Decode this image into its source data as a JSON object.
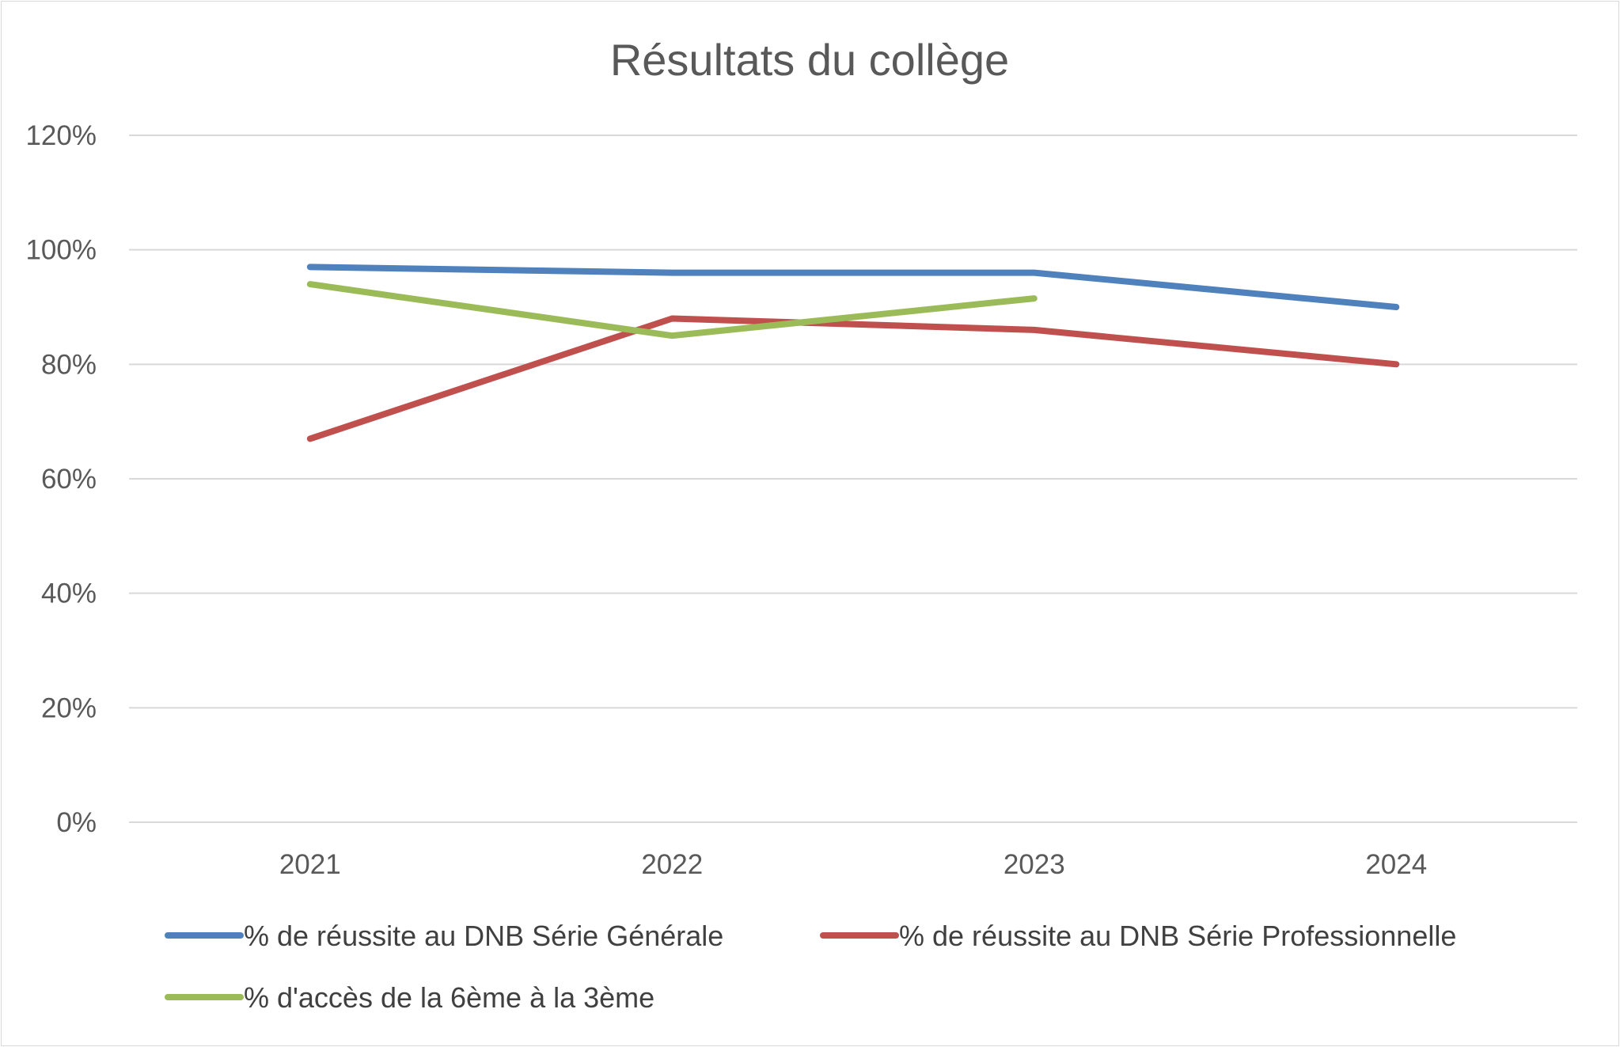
{
  "chart_data": {
    "type": "line",
    "title": "Résultats du collège",
    "categories": [
      "2021",
      "2022",
      "2023",
      "2024"
    ],
    "y_tick_labels": [
      "0%",
      "20%",
      "40%",
      "60%",
      "80%",
      "100%",
      "120%"
    ],
    "ylim": [
      0,
      1.2
    ],
    "grid": true,
    "legend_position": "bottom",
    "series": [
      {
        "name": "% de réussite au DNB Série Générale",
        "color": "#4f81bd",
        "values": [
          0.97,
          0.96,
          0.96,
          0.9
        ]
      },
      {
        "name": "% de réussite au DNB Série Professionnelle",
        "color": "#c0504d",
        "values": [
          0.67,
          0.88,
          0.86,
          0.8
        ]
      },
      {
        "name": "% d'accès de la 6ème à la 3ème",
        "color": "#9bbb59",
        "values": [
          0.94,
          0.85,
          0.915,
          null
        ]
      }
    ]
  }
}
